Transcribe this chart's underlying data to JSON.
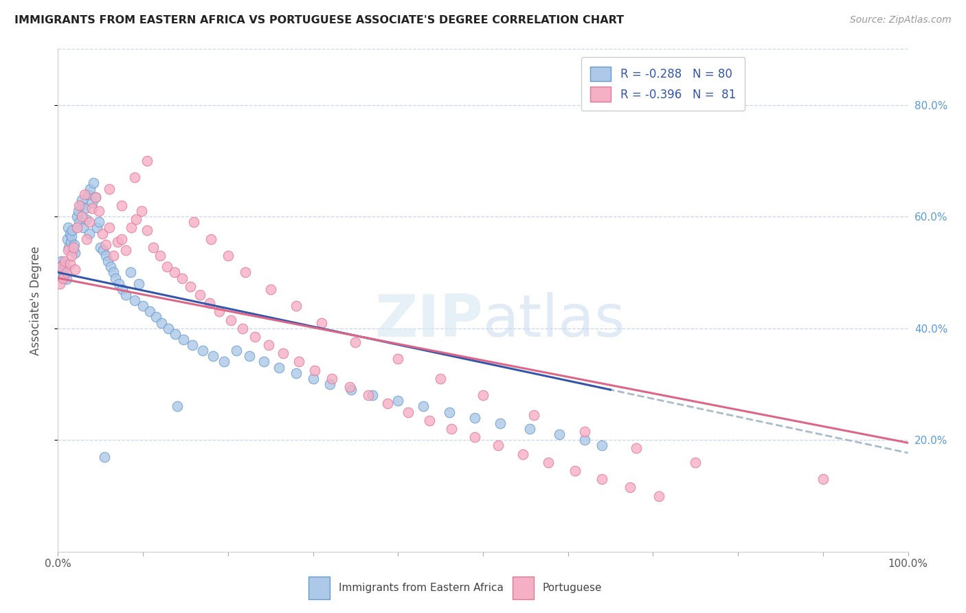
{
  "title": "IMMIGRANTS FROM EASTERN AFRICA VS PORTUGUESE ASSOCIATE'S DEGREE CORRELATION CHART",
  "source": "Source: ZipAtlas.com",
  "ylabel": "Associate's Degree",
  "watermark": "ZIPatlas",
  "series1_label": "Immigrants from Eastern Africa",
  "series2_label": "Portuguese",
  "series1_R": -0.288,
  "series1_N": 80,
  "series2_R": -0.396,
  "series2_N": 81,
  "series1_color": "#adc8e8",
  "series2_color": "#f5b0c5",
  "series1_edge_color": "#6699cc",
  "series2_edge_color": "#dd7799",
  "trend1_color": "#3355aa",
  "trend2_color": "#dd6688",
  "trend_dashed_color": "#aabbcc",
  "legend_text_color": "#3355aa",
  "right_axis_color": "#5b9bd5",
  "background_color": "#ffffff",
  "grid_color": "#c8d4e8",
  "xmin": 0.0,
  "xmax": 1.0,
  "ymin": 0.0,
  "ymax": 0.9,
  "right_yticks": [
    0.2,
    0.4,
    0.6,
    0.8
  ],
  "right_yticklabels": [
    "20.0%",
    "40.0%",
    "60.0%",
    "80.0%"
  ],
  "series1_x": [
    0.002,
    0.003,
    0.004,
    0.005,
    0.005,
    0.006,
    0.007,
    0.008,
    0.009,
    0.01,
    0.011,
    0.012,
    0.013,
    0.014,
    0.015,
    0.016,
    0.017,
    0.018,
    0.019,
    0.02,
    0.022,
    0.024,
    0.025,
    0.027,
    0.028,
    0.03,
    0.032,
    0.033,
    0.035,
    0.037,
    0.038,
    0.04,
    0.042,
    0.044,
    0.046,
    0.048,
    0.05,
    0.053,
    0.056,
    0.059,
    0.062,
    0.065,
    0.068,
    0.072,
    0.076,
    0.08,
    0.085,
    0.09,
    0.095,
    0.1,
    0.108,
    0.115,
    0.122,
    0.13,
    0.138,
    0.148,
    0.158,
    0.17,
    0.182,
    0.195,
    0.21,
    0.225,
    0.242,
    0.26,
    0.28,
    0.3,
    0.32,
    0.345,
    0.37,
    0.4,
    0.43,
    0.46,
    0.49,
    0.52,
    0.555,
    0.59,
    0.62,
    0.64,
    0.14,
    0.055
  ],
  "series1_y": [
    0.5,
    0.51,
    0.52,
    0.49,
    0.505,
    0.515,
    0.495,
    0.508,
    0.512,
    0.488,
    0.56,
    0.58,
    0.545,
    0.57,
    0.555,
    0.565,
    0.575,
    0.54,
    0.55,
    0.535,
    0.6,
    0.61,
    0.59,
    0.62,
    0.63,
    0.58,
    0.615,
    0.595,
    0.64,
    0.57,
    0.65,
    0.625,
    0.66,
    0.635,
    0.58,
    0.59,
    0.545,
    0.54,
    0.53,
    0.52,
    0.51,
    0.5,
    0.49,
    0.48,
    0.47,
    0.46,
    0.5,
    0.45,
    0.48,
    0.44,
    0.43,
    0.42,
    0.41,
    0.4,
    0.39,
    0.38,
    0.37,
    0.36,
    0.35,
    0.34,
    0.36,
    0.35,
    0.34,
    0.33,
    0.32,
    0.31,
    0.3,
    0.29,
    0.28,
    0.27,
    0.26,
    0.25,
    0.24,
    0.23,
    0.22,
    0.21,
    0.2,
    0.19,
    0.26,
    0.17
  ],
  "series2_x": [
    0.002,
    0.004,
    0.006,
    0.008,
    0.01,
    0.012,
    0.014,
    0.016,
    0.018,
    0.02,
    0.022,
    0.025,
    0.028,
    0.031,
    0.034,
    0.037,
    0.04,
    0.044,
    0.048,
    0.052,
    0.056,
    0.06,
    0.065,
    0.07,
    0.075,
    0.08,
    0.086,
    0.092,
    0.098,
    0.105,
    0.112,
    0.12,
    0.128,
    0.137,
    0.146,
    0.156,
    0.167,
    0.178,
    0.19,
    0.203,
    0.217,
    0.232,
    0.248,
    0.265,
    0.283,
    0.302,
    0.322,
    0.343,
    0.365,
    0.388,
    0.412,
    0.437,
    0.463,
    0.49,
    0.518,
    0.547,
    0.577,
    0.608,
    0.64,
    0.673,
    0.707,
    0.06,
    0.075,
    0.09,
    0.105,
    0.16,
    0.18,
    0.2,
    0.22,
    0.25,
    0.28,
    0.31,
    0.35,
    0.4,
    0.45,
    0.5,
    0.56,
    0.62,
    0.68,
    0.75,
    0.9
  ],
  "series2_y": [
    0.48,
    0.51,
    0.49,
    0.52,
    0.5,
    0.54,
    0.515,
    0.53,
    0.545,
    0.505,
    0.58,
    0.62,
    0.6,
    0.64,
    0.56,
    0.59,
    0.615,
    0.635,
    0.61,
    0.57,
    0.55,
    0.58,
    0.53,
    0.555,
    0.56,
    0.54,
    0.58,
    0.595,
    0.61,
    0.575,
    0.545,
    0.53,
    0.51,
    0.5,
    0.49,
    0.475,
    0.46,
    0.445,
    0.43,
    0.415,
    0.4,
    0.385,
    0.37,
    0.355,
    0.34,
    0.325,
    0.31,
    0.295,
    0.28,
    0.265,
    0.25,
    0.235,
    0.22,
    0.205,
    0.19,
    0.175,
    0.16,
    0.145,
    0.13,
    0.115,
    0.1,
    0.65,
    0.62,
    0.67,
    0.7,
    0.59,
    0.56,
    0.53,
    0.5,
    0.47,
    0.44,
    0.41,
    0.375,
    0.345,
    0.31,
    0.28,
    0.245,
    0.215,
    0.185,
    0.16,
    0.13
  ]
}
